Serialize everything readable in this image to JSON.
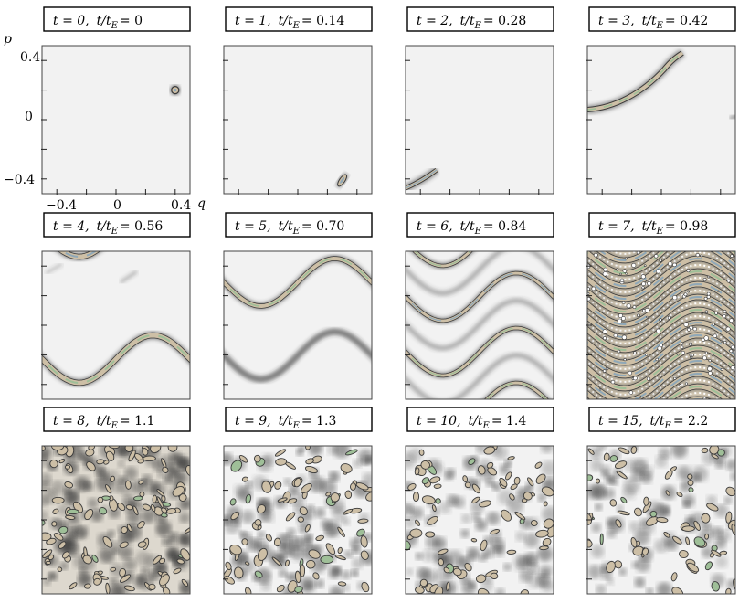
{
  "chart_data": {
    "type": "heatmap",
    "xlabel": "q",
    "ylabel": "p",
    "xlim": [
      -0.5,
      0.5
    ],
    "ylim": [
      -0.5,
      0.5
    ],
    "x_tick_labels": [
      "−0.4",
      "0",
      "0.4"
    ],
    "y_tick_labels": [
      "0.4",
      "0",
      "−0.4"
    ],
    "grid": false,
    "colors": {
      "background": "#f2f2f2",
      "frame": "#444444",
      "density_dark": "#3a3a3a",
      "density_fill": "#cdbfa6",
      "density_green": "#9fbf98",
      "density_blue": "#8fa8b8"
    },
    "panels": [
      {
        "t": "0",
        "t_over_tE": "0",
        "t_label": "t = 0,",
        "ratio_label": "t/t",
        "ratio_sub": "E",
        "ratio_value": "= 0",
        "pattern": "blob",
        "phase": 0
      },
      {
        "t": "1",
        "t_over_tE": "0.14",
        "t_label": "t = 1,",
        "ratio_label": "t/t",
        "ratio_sub": "E",
        "ratio_value": "= 0.14",
        "pattern": "blob",
        "phase": 1
      },
      {
        "t": "2",
        "t_over_tE": "0.28",
        "t_label": "t = 2,",
        "ratio_label": "t/t",
        "ratio_sub": "E",
        "ratio_value": "= 0.28",
        "pattern": "filament",
        "phase": 2
      },
      {
        "t": "3",
        "t_over_tE": "0.42",
        "t_label": "t = 3,",
        "ratio_label": "t/t",
        "ratio_sub": "E",
        "ratio_value": "= 0.42",
        "pattern": "filament",
        "phase": 3
      },
      {
        "t": "4",
        "t_over_tE": "0.56",
        "t_label": "t = 4,",
        "ratio_label": "t/t",
        "ratio_sub": "E",
        "ratio_value": "= 0.56",
        "pattern": "stripes",
        "phase": 4
      },
      {
        "t": "5",
        "t_over_tE": "0.70",
        "t_label": "t = 5,",
        "ratio_label": "t/t",
        "ratio_sub": "E",
        "ratio_value": "= 0.70",
        "pattern": "stripes",
        "phase": 5
      },
      {
        "t": "6",
        "t_over_tE": "0.84",
        "t_label": "t = 6,",
        "ratio_label": "t/t",
        "ratio_sub": "E",
        "ratio_value": "= 0.84",
        "pattern": "stripes",
        "phase": 6
      },
      {
        "t": "7",
        "t_over_tE": "0.98",
        "t_label": "t = 7,",
        "ratio_label": "t/t",
        "ratio_sub": "E",
        "ratio_value": "= 0.98",
        "pattern": "dense",
        "phase": 7
      },
      {
        "t": "8",
        "t_over_tE": "1.1",
        "t_label": "t = 8,",
        "ratio_label": "t/t",
        "ratio_sub": "E",
        "ratio_value": "= 1.1",
        "pattern": "noise",
        "phase": 8
      },
      {
        "t": "9",
        "t_over_tE": "1.3",
        "t_label": "t = 9,",
        "ratio_label": "t/t",
        "ratio_sub": "E",
        "ratio_value": "= 1.3",
        "pattern": "noise",
        "phase": 9
      },
      {
        "t": "10",
        "t_over_tE": "1.4",
        "t_label": "t = 10,",
        "ratio_label": "t/t",
        "ratio_sub": "E",
        "ratio_value": "= 1.4",
        "pattern": "noise",
        "phase": 10
      },
      {
        "t": "15",
        "t_over_tE": "2.2",
        "t_label": "t = 15,",
        "ratio_label": "t/t",
        "ratio_sub": "E",
        "ratio_value": "= 2.2",
        "pattern": "noise",
        "phase": 11
      }
    ]
  }
}
